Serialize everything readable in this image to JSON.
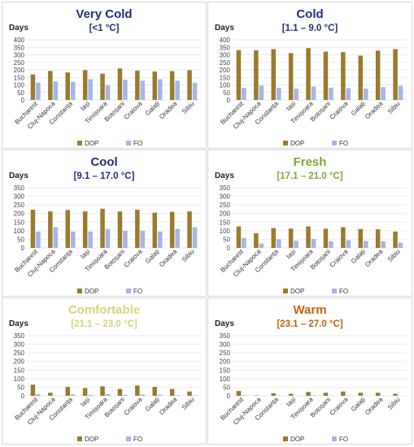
{
  "colors": {
    "dop": "#9A7B2D",
    "fo": "#A6B4E8",
    "grid": "#e3e3e3"
  },
  "chart_data": [
    {
      "type": "bar",
      "title": "Very Cold",
      "subtitle": "[<1 °C]",
      "title_color": "#1F2F7A",
      "subtitle_color": "#1F2F7A",
      "ylabel": "Days",
      "ylim": [
        0,
        400
      ],
      "yticks": [
        0,
        50,
        100,
        150,
        200,
        250,
        300,
        350,
        400
      ],
      "categories": [
        "Bucharest",
        "Cluj-Napoca",
        "Constanța",
        "Iași",
        "Timișoara",
        "Botoșani",
        "Craiova",
        "Galați",
        "Oradea",
        "Sibiu"
      ],
      "series": [
        {
          "name": "DOP",
          "values": [
            170,
            193,
            183,
            198,
            175,
            210,
            195,
            190,
            192,
            198
          ]
        },
        {
          "name": "FO",
          "values": [
            115,
            123,
            120,
            138,
            98,
            135,
            128,
            138,
            128,
            115
          ]
        }
      ],
      "legend": "bottom"
    },
    {
      "type": "bar",
      "title": "Cold",
      "subtitle": "[1.1 – 9.0 °C]",
      "title_color": "#1F2F7A",
      "subtitle_color": "#1F2F7A",
      "ylabel": "Days",
      "ylim": [
        0,
        400
      ],
      "yticks": [
        0,
        50,
        100,
        150,
        200,
        250,
        300,
        350,
        400
      ],
      "categories": [
        "Bucharest",
        "Cluj-Napoca",
        "Constanța",
        "Iași",
        "Timișoara",
        "Botoșani",
        "Craiova",
        "Galați",
        "Oradea",
        "Sibiu"
      ],
      "series": [
        {
          "name": "DOP",
          "values": [
            332,
            330,
            338,
            312,
            345,
            322,
            318,
            295,
            328,
            338
          ]
        },
        {
          "name": "FO",
          "values": [
            80,
            95,
            82,
            75,
            90,
            82,
            78,
            75,
            85,
            95
          ]
        }
      ],
      "legend": "bottom"
    },
    {
      "type": "bar",
      "title": "Cool",
      "subtitle": "[9.1 – 17.0 °C]",
      "title_color": "#1F2F7A",
      "subtitle_color": "#1F2F7A",
      "ylabel": "Days",
      "ylim": [
        0,
        350
      ],
      "yticks": [
        0,
        50,
        100,
        150,
        200,
        250,
        300,
        350
      ],
      "categories": [
        "Bucharest",
        "Cluj-Napoca",
        "Constanța",
        "Iași",
        "Timișoara",
        "Botoșani",
        "Craiova",
        "Galați",
        "Oradea",
        "Sibiu"
      ],
      "series": [
        {
          "name": "DOP",
          "values": [
            222,
            212,
            220,
            212,
            228,
            212,
            222,
            205,
            210,
            212
          ]
        },
        {
          "name": "FO",
          "values": [
            95,
            120,
            95,
            95,
            110,
            100,
            100,
            95,
            110,
            120
          ]
        }
      ],
      "legend": "bottom"
    },
    {
      "type": "bar",
      "title": "Fresh",
      "subtitle": "[17.1 – 21.0 °C]",
      "title_color": "#7CA63A",
      "subtitle_color": "#7CA63A",
      "ylabel": "Days",
      "ylim": [
        0,
        350
      ],
      "yticks": [
        0,
        50,
        100,
        150,
        200,
        250,
        300,
        350
      ],
      "categories": [
        "Bucharest",
        "Cluj-Napoca",
        "Constanța",
        "Iași",
        "Timișoara",
        "Botoșani",
        "Craiova",
        "Galați",
        "Oradea",
        "Sibiu"
      ],
      "series": [
        {
          "name": "DOP",
          "values": [
            125,
            85,
            115,
            112,
            125,
            112,
            120,
            110,
            108,
            95
          ]
        },
        {
          "name": "FO",
          "values": [
            58,
            25,
            50,
            42,
            52,
            38,
            45,
            40,
            38,
            30
          ]
        }
      ],
      "legend": "bottom"
    },
    {
      "type": "bar",
      "title": "Comfortable",
      "subtitle": "[21.1 – 23.0 °C]",
      "title_color": "#D9D27A",
      "subtitle_color": "#D9D27A",
      "ylabel": "Days",
      "ylim": [
        0,
        350
      ],
      "yticks": [
        0,
        50,
        100,
        150,
        200,
        250,
        300,
        350
      ],
      "categories": [
        "Bucharest",
        "Cluj-Napoca",
        "Constanța",
        "Iași",
        "Timișoara",
        "Botoșani",
        "Craiova",
        "Galați",
        "Oradea",
        "Sibiu"
      ],
      "series": [
        {
          "name": "DOP",
          "values": [
            65,
            18,
            52,
            45,
            55,
            40,
            60,
            52,
            40,
            25
          ]
        },
        {
          "name": "FO",
          "values": [
            10,
            2,
            8,
            5,
            10,
            5,
            8,
            6,
            3,
            2
          ]
        }
      ],
      "legend": "bottom"
    },
    {
      "type": "bar",
      "title": "Warm",
      "subtitle": "[23.1 – 27.0 °C]",
      "title_color": "#C0640E",
      "subtitle_color": "#C0640E",
      "ylabel": "Days",
      "ylim": [
        0,
        350
      ],
      "yticks": [
        0,
        50,
        100,
        150,
        200,
        250,
        300,
        350
      ],
      "categories": [
        "Bucharest",
        "Cluj-Napoca",
        "Constanța",
        "Iași",
        "Timișoara",
        "Botoșani",
        "Craiova",
        "Galați",
        "Oradea",
        "Sibiu"
      ],
      "series": [
        {
          "name": "DOP",
          "values": [
            28,
            2,
            15,
            12,
            22,
            18,
            25,
            18,
            18,
            12
          ]
        },
        {
          "name": "FO",
          "values": [
            3,
            0,
            2,
            1,
            2,
            1,
            2,
            1,
            1,
            0
          ]
        }
      ],
      "legend": "bottom"
    }
  ]
}
